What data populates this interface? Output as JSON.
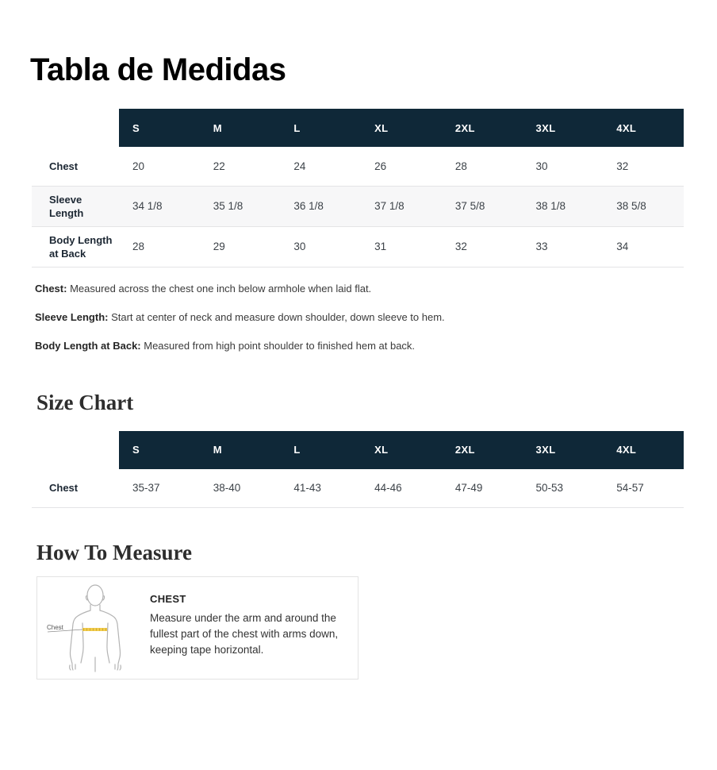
{
  "page": {
    "title": "Tabla de Medidas",
    "colors": {
      "table_header_bg": "#0f2838",
      "zebra_row_bg": "#f7f7f8",
      "tape_yellow": "#f2cc4a",
      "tape_tick": "#c9a637",
      "figure_outline": "#b3b3b3"
    }
  },
  "tables": [
    {
      "name": "measurements",
      "columns": [
        "S",
        "M",
        "L",
        "XL",
        "2XL",
        "3XL",
        "4XL"
      ],
      "rows": [
        {
          "label": "Chest",
          "values": [
            "20",
            "22",
            "24",
            "26",
            "28",
            "30",
            "32"
          ]
        },
        {
          "label": "Sleeve Length",
          "values": [
            "34 1/8",
            "35 1/8",
            "36 1/8",
            "37 1/8",
            "37 5/8",
            "38 1/8",
            "38 5/8"
          ]
        },
        {
          "label": "Body Length at Back",
          "values": [
            "28",
            "29",
            "30",
            "31",
            "32",
            "33",
            "34"
          ]
        }
      ]
    },
    {
      "name": "size-chart",
      "columns": [
        "S",
        "M",
        "L",
        "XL",
        "2XL",
        "3XL",
        "4XL"
      ],
      "rows": [
        {
          "label": "Chest",
          "values": [
            "35-37",
            "38-40",
            "41-43",
            "44-46",
            "47-49",
            "50-53",
            "54-57"
          ]
        }
      ]
    }
  ],
  "notes": [
    {
      "term": "Chest:",
      "text": " Measured across the chest one inch below armhole when laid flat."
    },
    {
      "term": "Sleeve Length:",
      "text": " Start at center of neck and measure down shoulder, down sleeve to hem."
    },
    {
      "term": "Body Length at Back:",
      "text": " Measured from high point shoulder to finished hem at back."
    }
  ],
  "size_chart": {
    "heading": "Size Chart"
  },
  "how_to_measure": {
    "heading": "How To Measure",
    "item": {
      "figure_label": "Chest",
      "title": "CHEST",
      "text": "Measure under the arm and around the fullest part of the chest with arms down, keeping tape horizontal."
    }
  }
}
